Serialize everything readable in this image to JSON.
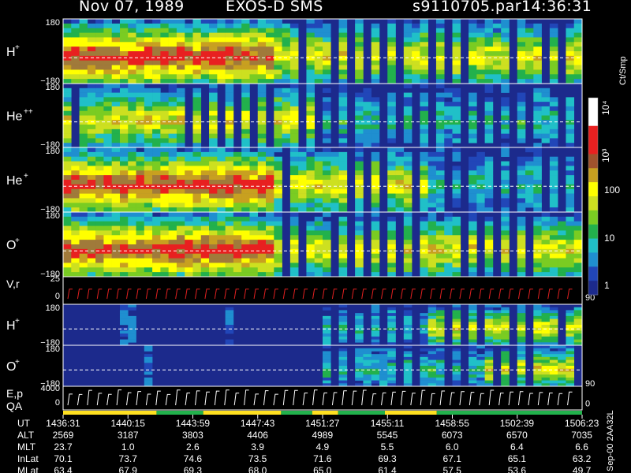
{
  "header": {
    "date": "Nov 07, 1989",
    "instrument": "EXOS-D SMS",
    "file": "s9110705.par",
    "time": "14:36:31"
  },
  "colorbar": {
    "unit_label": "Ct/Smp",
    "ticks": [
      "10⁴",
      "10³",
      "100",
      "10",
      "1"
    ],
    "tick_values": [
      10000,
      1000,
      100,
      10,
      1
    ]
  },
  "stamp": "Sep-00 2AA32L",
  "colors": {
    "background": "#000000",
    "low": "#1c2a8c",
    "mid": "#22b14c",
    "high": "#ffff00",
    "max": "#e82020",
    "white_tick": "#ffffff"
  },
  "chart_data": [
    {
      "type": "heatmap",
      "panel": "H+",
      "label": "H",
      "sup": "+",
      "ylim": [
        -180,
        180
      ],
      "ticks": [
        "180",
        "−180"
      ],
      "activity": [
        3,
        3,
        3,
        3,
        2,
        2,
        2,
        2,
        2,
        2
      ]
    },
    {
      "type": "heatmap",
      "panel": "He++",
      "label": "He",
      "sup": "++",
      "ylim": [
        -180,
        180
      ],
      "ticks": [
        "180",
        "−180"
      ],
      "activity": [
        2,
        2,
        2,
        2,
        2,
        1,
        1,
        1,
        1,
        1
      ]
    },
    {
      "type": "heatmap",
      "panel": "He+",
      "label": "He",
      "sup": "+",
      "ylim": [
        -180,
        180
      ],
      "ticks": [
        "180",
        "−180"
      ],
      "activity": [
        3,
        3,
        3,
        3,
        2,
        2,
        2,
        1,
        1,
        1
      ]
    },
    {
      "type": "heatmap",
      "panel": "O+",
      "label": "O",
      "sup": "+",
      "ylim": [
        -180,
        180
      ],
      "ticks": [
        "180",
        "−180"
      ],
      "activity": [
        3,
        3,
        3,
        3,
        2,
        2,
        2,
        2,
        2,
        2
      ]
    },
    {
      "type": "line",
      "panel": "V,r",
      "label": "V,r",
      "ticks_left": [
        "25",
        "0"
      ],
      "right_tick": "90"
    },
    {
      "type": "heatmap",
      "panel": "H+ (2)",
      "label": "H",
      "sup": "+",
      "ylim": [
        -180,
        180
      ],
      "ticks": [
        "180",
        "−180"
      ],
      "activity": [
        0,
        0,
        0,
        0,
        0,
        1,
        1,
        2,
        2,
        2
      ]
    },
    {
      "type": "heatmap",
      "panel": "O+ (2)",
      "label": "O",
      "sup": "+",
      "ylim": [
        -180,
        180
      ],
      "ticks": [
        "180",
        "−180"
      ],
      "right_tick": "90",
      "activity": [
        0,
        0,
        0,
        0,
        0,
        1,
        1,
        1,
        2,
        2
      ]
    },
    {
      "type": "line",
      "panel": "E,p QA",
      "label": "E,p",
      "label2": "QA",
      "ticks_left": [
        "4000",
        "0"
      ],
      "right_tick": "0"
    },
    {
      "type": "table",
      "row_labels": [
        "UT",
        "ALT",
        "MLT",
        "InLat",
        "MLat"
      ],
      "columns": [
        [
          "1436:31",
          "2569",
          "23.7",
          "70.1",
          "63.4"
        ],
        [
          "1440:15",
          "3187",
          "1.0",
          "73.7",
          "67.9"
        ],
        [
          "1443:59",
          "3803",
          "2.6",
          "74.6",
          "69.3"
        ],
        [
          "1447:43",
          "4406",
          "3.9",
          "73.5",
          "68.0"
        ],
        [
          "1451:27",
          "4989",
          "4.9",
          "71.6",
          "65.0"
        ],
        [
          "1455:11",
          "5545",
          "5.5",
          "69.3",
          "61.4"
        ],
        [
          "1458:55",
          "6073",
          "6.0",
          "67.1",
          "57.5"
        ],
        [
          "1502:39",
          "6570",
          "6.4",
          "65.1",
          "53.6"
        ],
        [
          "1506:23",
          "7035",
          "6.6",
          "63.2",
          "49.7"
        ]
      ]
    }
  ]
}
